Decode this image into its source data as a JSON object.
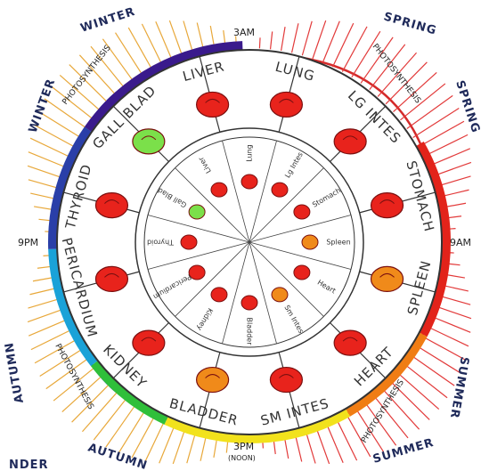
{
  "times": {
    "top": "3AM",
    "left": "9PM",
    "right": "9AM",
    "bottom": "3PM",
    "bottom_note": "(NOON)"
  },
  "seasons": {
    "top_left": "WINTER",
    "left_top": "WINTER",
    "top_right": "SPRING",
    "right_top": "SPRING",
    "bottom_left": "AUTUMN",
    "left_bottom": "AUTUMN",
    "bottom_right": "SUMMER",
    "right_bottom": "SUMMER",
    "bottom_corner_left": "NDER"
  },
  "band_text": {
    "top_left": "PHOTOSYNTHESIS",
    "top_right": "PHOTOSYNTHESIS",
    "bottom_left": "PHOTOSYNTHESIS",
    "bottom_right": "PHOTOSYNTHESIS"
  },
  "outer_labels": [
    "LIVER",
    "LUNG",
    "LG INTES",
    "STOMACH",
    "SPLEEN",
    "HEART",
    "SM INTES",
    "BLADDER",
    "KIDNEY",
    "PERICARDIUM",
    "THYROID",
    "GALL BLAD"
  ],
  "inner_labels": [
    "Bladder",
    "Kidney",
    "Pericardium",
    "Thyroid",
    "Gall Blad",
    "Liver",
    "Lung",
    "Lg Intes",
    "Stomach",
    "Spleen",
    "Heart",
    "Sm Intes"
  ],
  "colors": {
    "purple": "#3a1a8c",
    "red": "#e2231a",
    "orange": "#f07d14",
    "yellow": "#f2e21c",
    "green": "#2fbf3a",
    "cyan": "#1aa2d8",
    "blue": "#2a3fa8",
    "organ": "#e8231c",
    "gall": "#7be04a",
    "spleen": "#f08a1a"
  }
}
